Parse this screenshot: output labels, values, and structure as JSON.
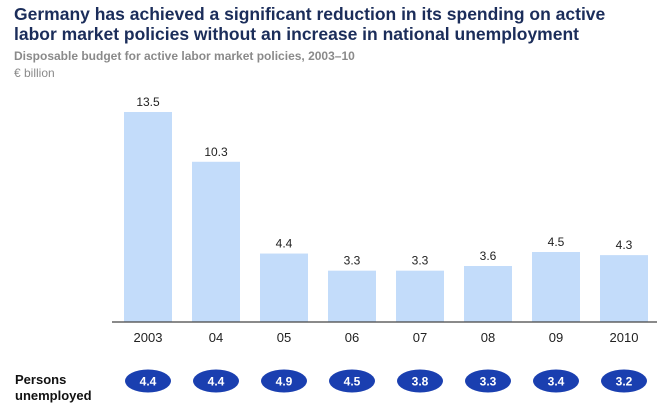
{
  "header": {
    "title": "Germany has achieved a significant reduction in its spending on active labor market policies without an increase in national unemployment",
    "subtitle": "Disposable budget for active labor market policies, 2003–10",
    "unit": "€ billion"
  },
  "unemployed_row": {
    "label": "Persons unemployed",
    "values": [
      "4.4",
      "4.4",
      "4.9",
      "4.5",
      "3.8",
      "3.3",
      "3.4",
      "3.2"
    ]
  },
  "colors": {
    "bar": "#c3dcfa",
    "badge": "#1a3fb0",
    "badge_text": "#ffffff",
    "axis": "#444444",
    "title": "#1b2d5a"
  },
  "chart_data": {
    "type": "bar",
    "title": "Disposable budget for active labor market policies, 2003–10",
    "ylabel": "€ billion",
    "categories": [
      "2003",
      "04",
      "05",
      "06",
      "07",
      "08",
      "09",
      "2010"
    ],
    "values": [
      13.5,
      10.3,
      4.4,
      3.3,
      3.3,
      3.6,
      4.5,
      4.3
    ],
    "data_labels": [
      "13.5",
      "10.3",
      "4.4",
      "3.3",
      "3.3",
      "3.6",
      "4.5",
      "4.3"
    ],
    "ylim": [
      0,
      13.5
    ],
    "grid": false,
    "legend": "none"
  }
}
